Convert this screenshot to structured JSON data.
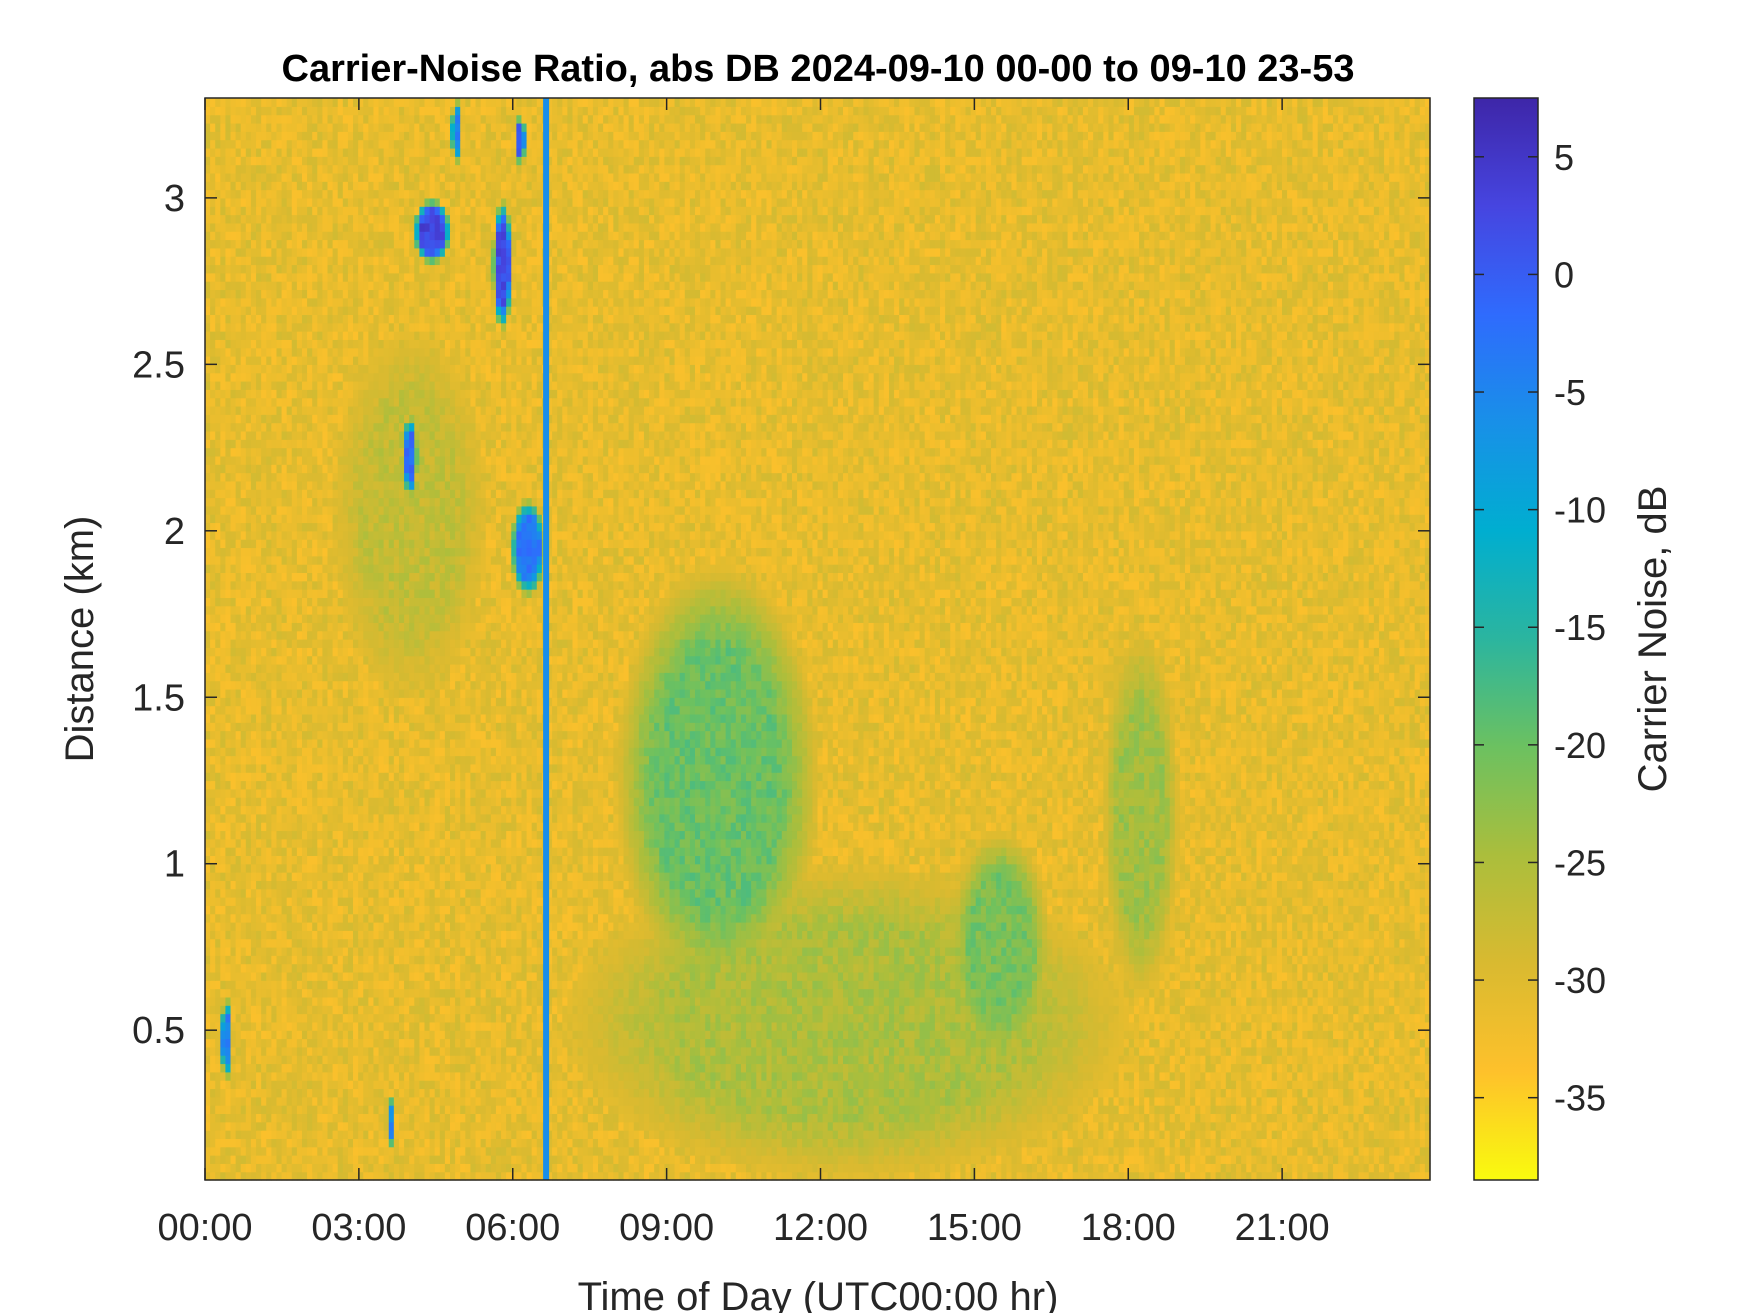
{
  "chart_data": {
    "type": "heatmap",
    "title": "Carrier-Noise Ratio, abs DB 2024-09-10 00-00 to 09-10 23-53",
    "xlabel": "Time of Day (UTC00:00 hr)",
    "ylabel": "Distance (km)",
    "colorbar_label": "Carrier Noise, dB",
    "xlim_hours": [
      0,
      23.883
    ],
    "ylim_km": [
      0.05,
      3.3
    ],
    "clim_db": [
      -38.5,
      7.5
    ],
    "x_ticks": [
      {
        "value": 0,
        "label": "00:00"
      },
      {
        "value": 3,
        "label": "03:00"
      },
      {
        "value": 6,
        "label": "06:00"
      },
      {
        "value": 9,
        "label": "09:00"
      },
      {
        "value": 12,
        "label": "12:00"
      },
      {
        "value": 15,
        "label": "15:00"
      },
      {
        "value": 18,
        "label": "18:00"
      },
      {
        "value": 21,
        "label": "21:00"
      }
    ],
    "y_ticks": [
      {
        "value": 0.5,
        "label": "0.5"
      },
      {
        "value": 1,
        "label": "1"
      },
      {
        "value": 1.5,
        "label": "1.5"
      },
      {
        "value": 2,
        "label": "2"
      },
      {
        "value": 2.5,
        "label": "2.5"
      },
      {
        "value": 3,
        "label": "3"
      }
    ],
    "colorbar_ticks": [
      {
        "value": 5,
        "label": "5"
      },
      {
        "value": 0,
        "label": "0"
      },
      {
        "value": -5,
        "label": "-5"
      },
      {
        "value": -10,
        "label": "-10"
      },
      {
        "value": -15,
        "label": "-15"
      },
      {
        "value": -20,
        "label": "-20"
      },
      {
        "value": -25,
        "label": "-25"
      },
      {
        "value": -30,
        "label": "-30"
      },
      {
        "value": -35,
        "label": "-35"
      }
    ],
    "colormap": [
      "#f9fb0e",
      "#fec12b",
      "#d9ba30",
      "#abbe3c",
      "#6cc160",
      "#2bb59f",
      "#00aed0",
      "#1890e8",
      "#2f6bfd",
      "#4645e0",
      "#3e26a8"
    ],
    "background_db": -31,
    "features": [
      {
        "desc": "boundary-layer enhancement",
        "t0": 8.0,
        "t1": 12.0,
        "z0": 0.6,
        "z1": 1.9,
        "db": -20
      },
      {
        "desc": "daytime near-surface layer",
        "t0": 7.0,
        "t1": 18.0,
        "z0": 0.05,
        "z1": 1.0,
        "db": -25
      },
      {
        "desc": "afternoon plume",
        "t0": 14.5,
        "t1": 16.5,
        "z0": 0.4,
        "z1": 1.1,
        "db": -21
      },
      {
        "desc": "evening plume",
        "t0": 17.5,
        "t1": 19.0,
        "z0": 0.6,
        "z1": 1.7,
        "db": -24
      },
      {
        "desc": "night layer",
        "t0": 2.5,
        "t1": 5.5,
        "z0": 1.5,
        "z1": 2.6,
        "db": -27
      },
      {
        "desc": "cloud return",
        "t0": 4.05,
        "t1": 4.8,
        "z0": 2.8,
        "z1": 3.0,
        "db": 3
      },
      {
        "desc": "cloud return",
        "t0": 3.85,
        "t1": 4.15,
        "z0": 2.1,
        "z1": 2.35,
        "db": -2
      },
      {
        "desc": "cloud return",
        "t0": 5.95,
        "t1": 6.65,
        "z0": 1.8,
        "z1": 2.1,
        "db": -3
      },
      {
        "desc": "cloud return",
        "t0": 5.6,
        "t1": 6.0,
        "z0": 2.6,
        "z1": 3.0,
        "db": 2
      },
      {
        "desc": "cloud return",
        "t0": 0.3,
        "t1": 0.55,
        "z0": 0.35,
        "z1": 0.6,
        "db": -4
      },
      {
        "desc": "cloud return",
        "t0": 3.55,
        "t1": 3.7,
        "z0": 0.15,
        "z1": 0.3,
        "db": -5
      },
      {
        "desc": "cloud return",
        "t0": 4.8,
        "t1": 5.0,
        "z0": 3.1,
        "z1": 3.3,
        "db": -4
      },
      {
        "desc": "cloud return",
        "t0": 6.05,
        "t1": 6.25,
        "z0": 3.1,
        "z1": 3.25,
        "db": 0
      }
    ],
    "vertical_line": {
      "time_hours": 6.65,
      "db": -6
    }
  }
}
